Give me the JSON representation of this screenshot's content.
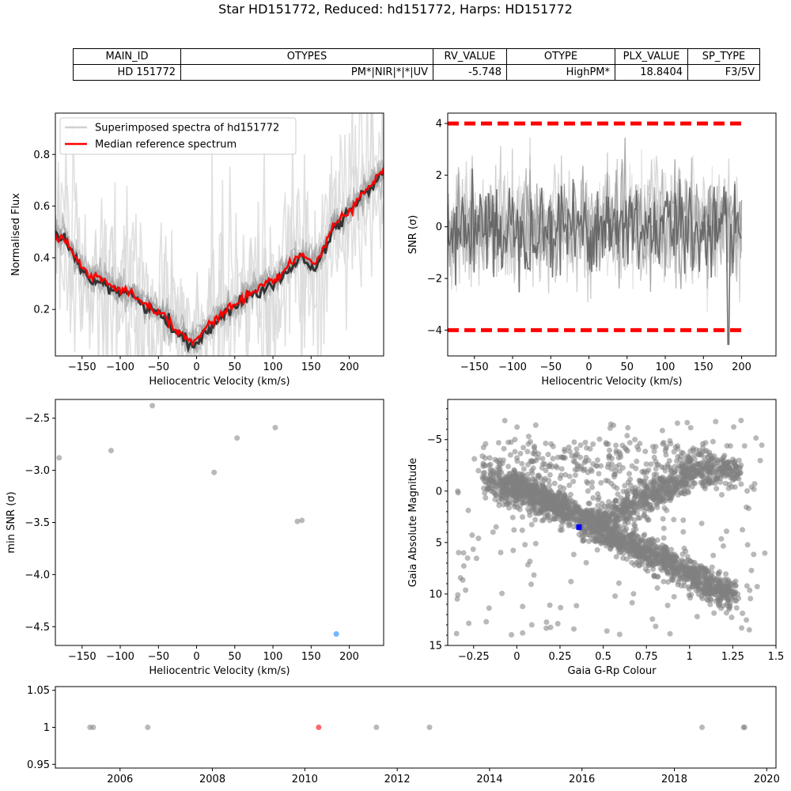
{
  "title": "Star HD151772, Reduced: hd151772, Harps: HD151772",
  "table": {
    "headers": [
      "MAIN_ID",
      "OTYPES",
      "RV_VALUE",
      "OTYPE",
      "PLX_VALUE",
      "SP_TYPE"
    ],
    "values": [
      "HD 151772",
      "PM*|NIR|*|*|UV",
      "-5.748",
      "HighPM*",
      "18.8404",
      "F3/5V"
    ]
  },
  "colors": {
    "reference": "#ff0000",
    "spectra": "#aaaaaa",
    "spectra_dark": "#333333",
    "points": "#808080",
    "highlight_blue": "#3399ff",
    "star_marker": "#0000ff",
    "highlight_red": "#ff4444"
  },
  "chart_data": [
    {
      "type": "line",
      "xlabel": "Heliocentric Velocity (km/s)",
      "ylabel": "Normalised Flux",
      "xlim": [
        -185,
        245
      ],
      "ylim": [
        0.02,
        0.96
      ],
      "xticks": [
        -150,
        -100,
        -50,
        0,
        50,
        100,
        150,
        200
      ],
      "yticks": [
        0.2,
        0.4,
        0.6,
        0.8
      ],
      "legend": [
        "Superimposed spectra of hd151772",
        "Median reference spectrum"
      ],
      "legend_position": "upper-left",
      "series": [
        {
          "name": "Median reference spectrum",
          "x": [
            -185,
            -170,
            -160,
            -150,
            -140,
            -130,
            -120,
            -110,
            -100,
            -90,
            -80,
            -70,
            -60,
            -50,
            -40,
            -30,
            -20,
            -10,
            -5,
            0,
            10,
            20,
            30,
            40,
            50,
            60,
            70,
            80,
            90,
            100,
            110,
            120,
            130,
            140,
            150,
            160,
            170,
            180,
            190,
            200,
            210,
            220,
            230,
            245
          ],
          "y": [
            0.49,
            0.46,
            0.41,
            0.36,
            0.32,
            0.33,
            0.31,
            0.29,
            0.28,
            0.27,
            0.25,
            0.23,
            0.21,
            0.19,
            0.17,
            0.13,
            0.11,
            0.08,
            0.07,
            0.08,
            0.12,
            0.15,
            0.18,
            0.2,
            0.22,
            0.24,
            0.26,
            0.28,
            0.3,
            0.31,
            0.34,
            0.36,
            0.4,
            0.41,
            0.38,
            0.39,
            0.46,
            0.53,
            0.56,
            0.58,
            0.62,
            0.66,
            0.69,
            0.74
          ]
        }
      ]
    },
    {
      "type": "line",
      "xlabel": "Heliocentric Velocity (km/s)",
      "ylabel": "SNR (σ)",
      "xlim": [
        -185,
        245
      ],
      "ylim": [
        -5,
        4.4
      ],
      "xticks": [
        -150,
        -100,
        -50,
        0,
        50,
        100,
        150,
        200
      ],
      "yticks": [
        -4,
        -2,
        0,
        2,
        4
      ],
      "thresholds": [
        4,
        -4
      ],
      "x_range": [
        -185,
        200
      ],
      "min_point": {
        "x": 183,
        "y": -4.55
      }
    },
    {
      "type": "scatter",
      "xlabel": "Heliocentric Velocity (km/s)",
      "ylabel": "min SNR (σ)",
      "xlim": [
        -185,
        245
      ],
      "ylim": [
        -4.68,
        -2.32
      ],
      "xticks": [
        -150,
        -100,
        -50,
        0,
        50,
        100,
        150,
        200
      ],
      "yticks": [
        -4.5,
        -4.0,
        -3.5,
        -3.0,
        -2.5
      ],
      "points": [
        {
          "x": -180,
          "y": -2.88
        },
        {
          "x": -112,
          "y": -2.81
        },
        {
          "x": -58,
          "y": -2.38
        },
        {
          "x": 23,
          "y": -3.02
        },
        {
          "x": 53,
          "y": -2.69
        },
        {
          "x": 103,
          "y": -2.59
        },
        {
          "x": 132,
          "y": -3.49
        },
        {
          "x": 138,
          "y": -3.48
        }
      ],
      "highlight": {
        "x": 183,
        "y": -4.57
      }
    },
    {
      "type": "scatter",
      "xlabel": "Gaia G-Rp Colour",
      "ylabel": "Gaia Absolute Magnitude",
      "xlim": [
        -0.4,
        1.5
      ],
      "ylim_inverted": [
        15,
        -8.9
      ],
      "xticks": [
        -0.25,
        0.0,
        0.25,
        0.5,
        0.75,
        1.0,
        1.25,
        1.5
      ],
      "yticks": [
        -5,
        0,
        5,
        10,
        15
      ],
      "star": {
        "x": 0.36,
        "y": 3.5
      }
    },
    {
      "type": "scatter",
      "xlim": [
        2004.6,
        2020.2
      ],
      "ylim": [
        0.945,
        1.055
      ],
      "xticks": [
        2006,
        2008,
        2010,
        2012,
        2014,
        2016,
        2018,
        2020
      ],
      "yticks": [
        0.95,
        1.0,
        1.05
      ],
      "points": [
        {
          "x": 2005.35,
          "y": 1.0
        },
        {
          "x": 2005.42,
          "y": 1.0
        },
        {
          "x": 2006.6,
          "y": 1.0
        },
        {
          "x": 2011.55,
          "y": 1.0
        },
        {
          "x": 2012.7,
          "y": 1.0
        },
        {
          "x": 2018.6,
          "y": 1.0
        },
        {
          "x": 2019.5,
          "y": 1.0
        },
        {
          "x": 2019.52,
          "y": 1.0
        }
      ],
      "highlight": {
        "x": 2010.3,
        "y": 1.0
      }
    }
  ]
}
